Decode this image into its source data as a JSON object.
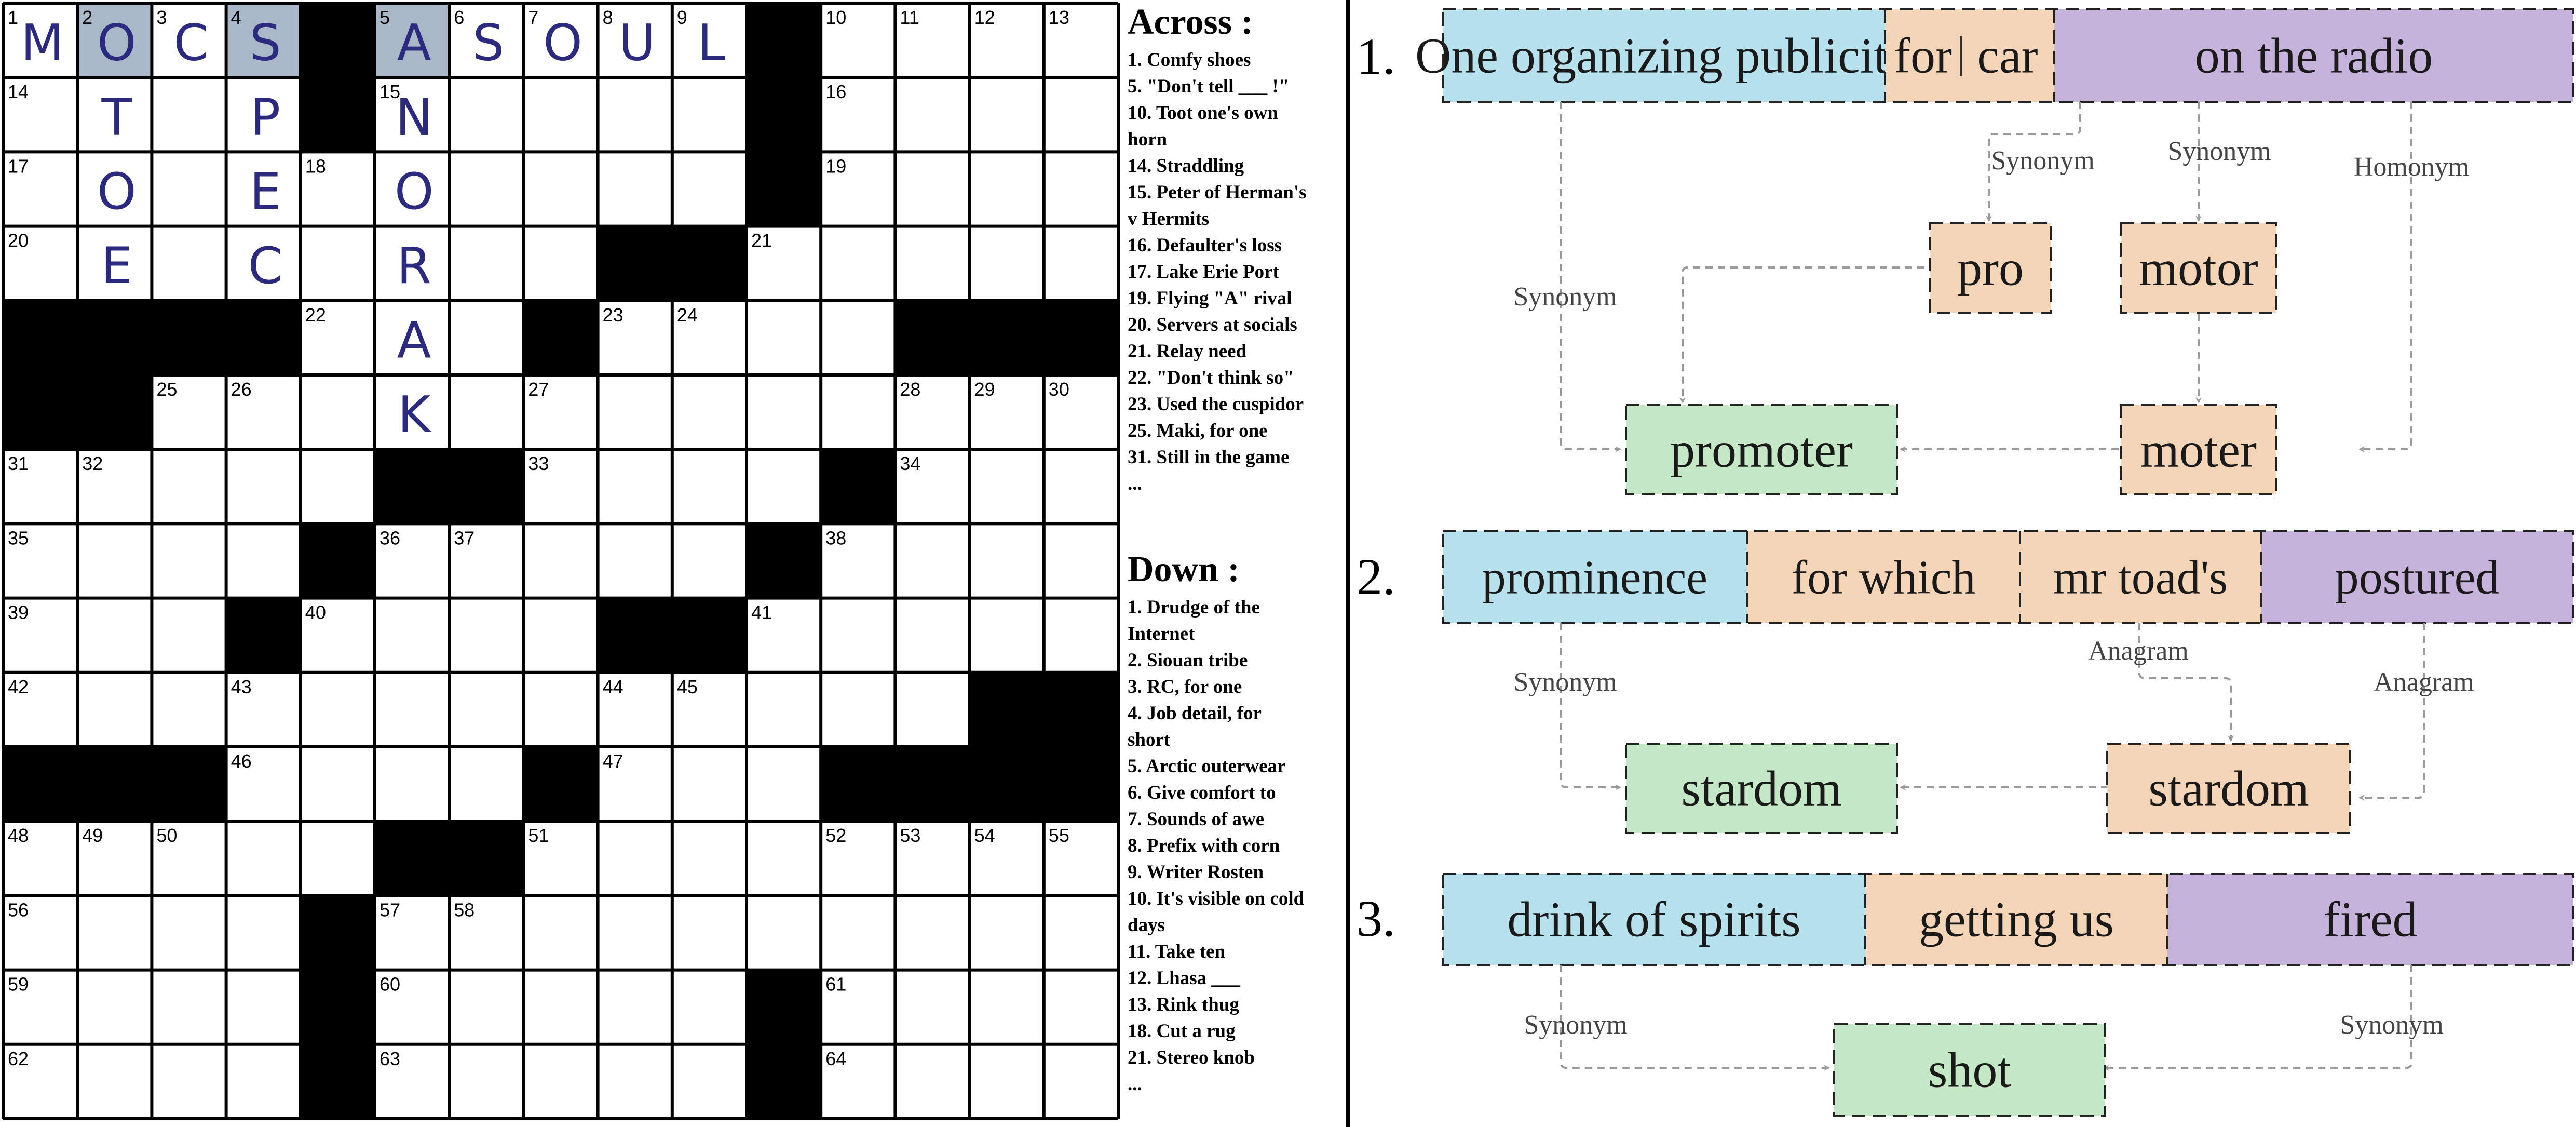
{
  "crossword": {
    "size": 15,
    "colors": {
      "black": "#000000",
      "highlight": "#a9b8c9",
      "letter": "#2b2a7e"
    },
    "blacks": [
      [
        0,
        4
      ],
      [
        0,
        10
      ],
      [
        1,
        4
      ],
      [
        1,
        10
      ],
      [
        2,
        10
      ],
      [
        3,
        8
      ],
      [
        3,
        9
      ],
      [
        4,
        0
      ],
      [
        4,
        1
      ],
      [
        4,
        2
      ],
      [
        4,
        3
      ],
      [
        4,
        7
      ],
      [
        4,
        12
      ],
      [
        4,
        13
      ],
      [
        4,
        14
      ],
      [
        5,
        0
      ],
      [
        5,
        1
      ],
      [
        6,
        5
      ],
      [
        6,
        6
      ],
      [
        6,
        11
      ],
      [
        7,
        4
      ],
      [
        7,
        10
      ],
      [
        8,
        3
      ],
      [
        8,
        8
      ],
      [
        8,
        9
      ],
      [
        9,
        13
      ],
      [
        9,
        14
      ],
      [
        10,
        0
      ],
      [
        10,
        1
      ],
      [
        10,
        2
      ],
      [
        10,
        7
      ],
      [
        10,
        11
      ],
      [
        10,
        12
      ],
      [
        10,
        13
      ],
      [
        10,
        14
      ],
      [
        11,
        5
      ],
      [
        11,
        6
      ],
      [
        12,
        4
      ],
      [
        13,
        4
      ],
      [
        13,
        10
      ],
      [
        14,
        4
      ],
      [
        14,
        10
      ]
    ],
    "highlighted": [
      [
        0,
        1
      ],
      [
        0,
        3
      ],
      [
        0,
        5
      ]
    ],
    "numbers": [
      {
        "r": 0,
        "c": 0,
        "n": "1"
      },
      {
        "r": 0,
        "c": 1,
        "n": "2"
      },
      {
        "r": 0,
        "c": 2,
        "n": "3"
      },
      {
        "r": 0,
        "c": 3,
        "n": "4"
      },
      {
        "r": 0,
        "c": 5,
        "n": "5"
      },
      {
        "r": 0,
        "c": 6,
        "n": "6"
      },
      {
        "r": 0,
        "c": 7,
        "n": "7"
      },
      {
        "r": 0,
        "c": 8,
        "n": "8"
      },
      {
        "r": 0,
        "c": 9,
        "n": "9"
      },
      {
        "r": 0,
        "c": 11,
        "n": "10"
      },
      {
        "r": 0,
        "c": 12,
        "n": "11"
      },
      {
        "r": 0,
        "c": 13,
        "n": "12"
      },
      {
        "r": 0,
        "c": 14,
        "n": "13"
      },
      {
        "r": 1,
        "c": 0,
        "n": "14"
      },
      {
        "r": 1,
        "c": 5,
        "n": "15"
      },
      {
        "r": 1,
        "c": 11,
        "n": "16"
      },
      {
        "r": 2,
        "c": 0,
        "n": "17"
      },
      {
        "r": 2,
        "c": 4,
        "n": "18"
      },
      {
        "r": 2,
        "c": 11,
        "n": "19"
      },
      {
        "r": 3,
        "c": 0,
        "n": "20"
      },
      {
        "r": 3,
        "c": 10,
        "n": "21"
      },
      {
        "r": 4,
        "c": 4,
        "n": "22"
      },
      {
        "r": 4,
        "c": 8,
        "n": "23"
      },
      {
        "r": 4,
        "c": 9,
        "n": "24"
      },
      {
        "r": 5,
        "c": 2,
        "n": "25"
      },
      {
        "r": 5,
        "c": 3,
        "n": "26"
      },
      {
        "r": 5,
        "c": 7,
        "n": "27"
      },
      {
        "r": 5,
        "c": 12,
        "n": "28"
      },
      {
        "r": 5,
        "c": 13,
        "n": "29"
      },
      {
        "r": 5,
        "c": 14,
        "n": "30"
      },
      {
        "r": 6,
        "c": 0,
        "n": "31"
      },
      {
        "r": 6,
        "c": 1,
        "n": "32"
      },
      {
        "r": 6,
        "c": 7,
        "n": "33"
      },
      {
        "r": 6,
        "c": 12,
        "n": "34"
      },
      {
        "r": 7,
        "c": 0,
        "n": "35"
      },
      {
        "r": 7,
        "c": 5,
        "n": "36"
      },
      {
        "r": 7,
        "c": 6,
        "n": "37"
      },
      {
        "r": 7,
        "c": 11,
        "n": "38"
      },
      {
        "r": 8,
        "c": 0,
        "n": "39"
      },
      {
        "r": 8,
        "c": 4,
        "n": "40"
      },
      {
        "r": 8,
        "c": 10,
        "n": "41"
      },
      {
        "r": 9,
        "c": 0,
        "n": "42"
      },
      {
        "r": 9,
        "c": 3,
        "n": "43"
      },
      {
        "r": 9,
        "c": 8,
        "n": "44"
      },
      {
        "r": 9,
        "c": 9,
        "n": "45"
      },
      {
        "r": 10,
        "c": 3,
        "n": "46"
      },
      {
        "r": 10,
        "c": 8,
        "n": "47"
      },
      {
        "r": 11,
        "c": 0,
        "n": "48"
      },
      {
        "r": 11,
        "c": 1,
        "n": "49"
      },
      {
        "r": 11,
        "c": 2,
        "n": "50"
      },
      {
        "r": 11,
        "c": 7,
        "n": "51"
      },
      {
        "r": 11,
        "c": 11,
        "n": "52"
      },
      {
        "r": 11,
        "c": 12,
        "n": "53"
      },
      {
        "r": 11,
        "c": 13,
        "n": "54"
      },
      {
        "r": 11,
        "c": 14,
        "n": "55"
      },
      {
        "r": 12,
        "c": 0,
        "n": "56"
      },
      {
        "r": 12,
        "c": 5,
        "n": "57"
      },
      {
        "r": 12,
        "c": 6,
        "n": "58"
      },
      {
        "r": 13,
        "c": 0,
        "n": "59"
      },
      {
        "r": 13,
        "c": 5,
        "n": "60"
      },
      {
        "r": 13,
        "c": 11,
        "n": "61"
      },
      {
        "r": 14,
        "c": 0,
        "n": "62"
      },
      {
        "r": 14,
        "c": 5,
        "n": "63"
      },
      {
        "r": 14,
        "c": 11,
        "n": "64"
      }
    ],
    "letters": [
      {
        "r": 0,
        "c": 0,
        "l": "M"
      },
      {
        "r": 0,
        "c": 1,
        "l": "O"
      },
      {
        "r": 0,
        "c": 2,
        "l": "C"
      },
      {
        "r": 0,
        "c": 3,
        "l": "S"
      },
      {
        "r": 0,
        "c": 5,
        "l": "A"
      },
      {
        "r": 0,
        "c": 6,
        "l": "S"
      },
      {
        "r": 0,
        "c": 7,
        "l": "O"
      },
      {
        "r": 0,
        "c": 8,
        "l": "U"
      },
      {
        "r": 0,
        "c": 9,
        "l": "L"
      },
      {
        "r": 1,
        "c": 1,
        "l": "T"
      },
      {
        "r": 2,
        "c": 1,
        "l": "O"
      },
      {
        "r": 3,
        "c": 1,
        "l": "E"
      },
      {
        "r": 1,
        "c": 3,
        "l": "P"
      },
      {
        "r": 2,
        "c": 3,
        "l": "E"
      },
      {
        "r": 3,
        "c": 3,
        "l": "C"
      },
      {
        "r": 1,
        "c": 5,
        "l": "N"
      },
      {
        "r": 2,
        "c": 5,
        "l": "O"
      },
      {
        "r": 3,
        "c": 5,
        "l": "R"
      },
      {
        "r": 4,
        "c": 5,
        "l": "A"
      },
      {
        "r": 5,
        "c": 5,
        "l": "K"
      }
    ]
  },
  "clues": {
    "across_title": "Across :",
    "down_title": "Down :",
    "across": [
      "1. Comfy shoes",
      "5. \"Don't tell ___ !\"",
      "10. Toot one's own",
      "horn",
      "14. Straddling",
      "15. Peter of Herman's",
      "v Hermits",
      "16. Defaulter's loss",
      "17. Lake Erie Port",
      "19. Flying \"A\" rival",
      "20. Servers at socials",
      "21. Relay need",
      "22. \"Don't think so\"",
      "23. Used the cuspidor",
      "25. Maki, for one",
      "31. Still in the game",
      "..."
    ],
    "down": [
      "1. Drudge of the",
      "Internet",
      "2. Siouan tribe",
      "3. RC, for one",
      "4. Job detail, for",
      "short",
      "5. Arctic outerwear",
      "6. Give comfort to",
      "7. Sounds of awe",
      "8. Prefix with corn",
      "9. Writer Rosten",
      "10. It's visible on cold",
      "days",
      "11. Take ten",
      "12. Lhasa ___",
      "13. Rink thug",
      "18. Cut a rug",
      "21. Stereo knob",
      "..."
    ]
  },
  "diagram": {
    "colors": {
      "definition": "#b6e1ed",
      "wordplay": "#f5d5b7",
      "indicator": "#c5b3dc",
      "answer": "#c5e8c6",
      "arrow": "#9a9a9a"
    },
    "examples": [
      {
        "number": "1.",
        "segments": [
          {
            "text": "One organizing publicity",
            "kind": "definition"
          },
          {
            "text": "for",
            "kind": "wordplay"
          },
          {
            "text": "car",
            "kind": "wordplay"
          },
          {
            "text": "on the radio",
            "kind": "indicator"
          }
        ],
        "nodes": [
          {
            "id": "pro",
            "text": "pro",
            "kind": "wordplay"
          },
          {
            "id": "motor",
            "text": "motor",
            "kind": "wordplay"
          },
          {
            "id": "moter",
            "text": "moter",
            "kind": "wordplay"
          },
          {
            "id": "answer",
            "text": "promoter",
            "kind": "answer"
          }
        ],
        "labels": [
          "Synonym",
          "Synonym",
          "Homonym",
          "Synonym"
        ]
      },
      {
        "number": "2.",
        "segments": [
          {
            "text": "prominence",
            "kind": "definition"
          },
          {
            "text": "for which",
            "kind": "wordplay"
          },
          {
            "text": "mr toad's",
            "kind": "wordplay"
          },
          {
            "text": "postured",
            "kind": "indicator"
          }
        ],
        "nodes": [
          {
            "id": "mid",
            "text": "stardom",
            "kind": "wordplay"
          },
          {
            "id": "answer",
            "text": "stardom",
            "kind": "answer"
          }
        ],
        "labels": [
          "Synonym",
          "Anagram",
          "Anagram"
        ]
      },
      {
        "number": "3.",
        "segments": [
          {
            "text": "drink of spirits",
            "kind": "definition"
          },
          {
            "text": "getting us",
            "kind": "wordplay"
          },
          {
            "text": "fired",
            "kind": "indicator"
          }
        ],
        "nodes": [
          {
            "id": "answer",
            "text": "shot",
            "kind": "answer"
          }
        ],
        "labels": [
          "Synonym",
          "Synonym"
        ]
      }
    ]
  }
}
